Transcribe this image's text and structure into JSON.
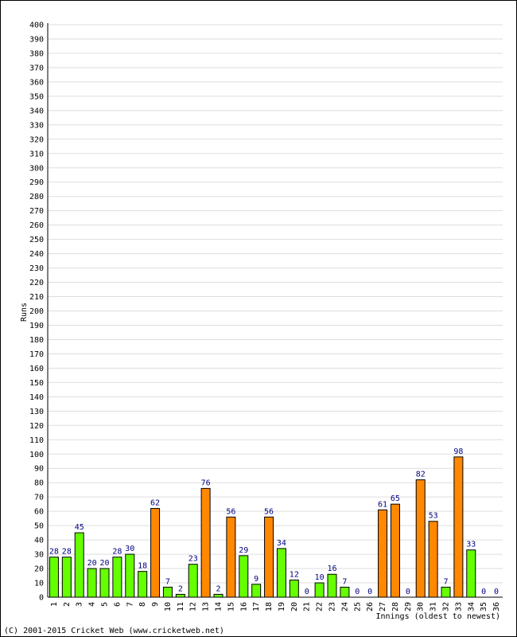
{
  "chart_data": {
    "type": "bar",
    "title": "",
    "xlabel": "Innings (oldest to newest)",
    "ylabel": "Runs",
    "ylim": [
      0,
      400
    ],
    "y_tick_step": 10,
    "grid": true,
    "categories": [
      "1",
      "2",
      "3",
      "4",
      "5",
      "6",
      "7",
      "8",
      "9",
      "10",
      "11",
      "12",
      "13",
      "14",
      "15",
      "16",
      "17",
      "18",
      "19",
      "20",
      "21",
      "22",
      "23",
      "24",
      "25",
      "26",
      "27",
      "28",
      "29",
      "30",
      "31",
      "32",
      "33",
      "34",
      "35",
      "36"
    ],
    "values": [
      28,
      28,
      45,
      20,
      20,
      28,
      30,
      18,
      62,
      7,
      2,
      23,
      76,
      2,
      56,
      29,
      9,
      56,
      34,
      12,
      0,
      10,
      16,
      7,
      0,
      0,
      61,
      65,
      0,
      82,
      53,
      7,
      98,
      33,
      0,
      0
    ],
    "bar_status": [
      "green",
      "green",
      "green",
      "green",
      "green",
      "green",
      "green",
      "green",
      "orange",
      "green",
      "green",
      "green",
      "orange",
      "green",
      "orange",
      "green",
      "green",
      "orange",
      "green",
      "green",
      "green",
      "green",
      "green",
      "green",
      "green",
      "green",
      "orange",
      "orange",
      "green",
      "orange",
      "orange",
      "green",
      "orange",
      "green",
      "green",
      "green"
    ],
    "colors": {
      "green": "#66ff00",
      "orange": "#ff8800",
      "bar_outline": "#000000",
      "grid": "#dddddd",
      "data_label": "#000080"
    }
  },
  "footer": {
    "copyright": "(C) 2001-2015 Cricket Web (www.cricketweb.net)"
  }
}
